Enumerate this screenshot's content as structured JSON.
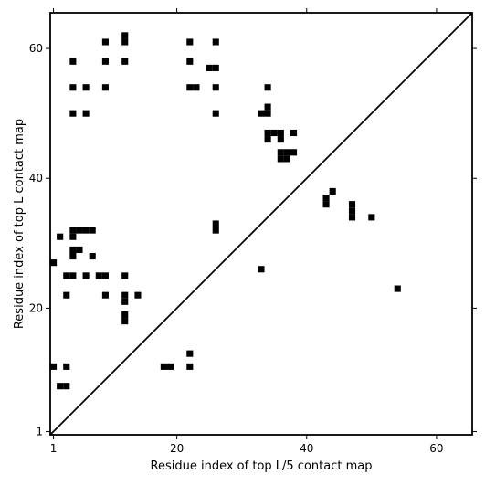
{
  "chart_data": {
    "type": "heatmap",
    "xlabel": "Residue index of top L/5 contact map",
    "ylabel": "Residue index of top L contact map",
    "xlim": [
      0.5,
      65.5
    ],
    "ylim": [
      0.5,
      65.5
    ],
    "x_ticks": [
      1,
      20,
      40,
      60
    ],
    "y_ticks": [
      1,
      20,
      40,
      60
    ],
    "diagonal": true,
    "colors": {
      "contact": "#000000",
      "background": "#ffffff",
      "frame": "#000000"
    },
    "contacts": [
      [
        12,
        62
      ],
      [
        12,
        61
      ],
      [
        9,
        61
      ],
      [
        22,
        61
      ],
      [
        26,
        61
      ],
      [
        4,
        58
      ],
      [
        9,
        58
      ],
      [
        12,
        58
      ],
      [
        22,
        58
      ],
      [
        25,
        57
      ],
      [
        26,
        57
      ],
      [
        4,
        54
      ],
      [
        6,
        54
      ],
      [
        9,
        54
      ],
      [
        22,
        54
      ],
      [
        23,
        54
      ],
      [
        26,
        54
      ],
      [
        34,
        54
      ],
      [
        34,
        51
      ],
      [
        4,
        50
      ],
      [
        6,
        50
      ],
      [
        26,
        50
      ],
      [
        33,
        50
      ],
      [
        34,
        50
      ],
      [
        34,
        47
      ],
      [
        35,
        47
      ],
      [
        36,
        47
      ],
      [
        38,
        47
      ],
      [
        34,
        46
      ],
      [
        36,
        46
      ],
      [
        36,
        44
      ],
      [
        37,
        44
      ],
      [
        38,
        44
      ],
      [
        36,
        43
      ],
      [
        37,
        43
      ],
      [
        44,
        38
      ],
      [
        43,
        37
      ],
      [
        43,
        36
      ],
      [
        47,
        36
      ],
      [
        47,
        35
      ],
      [
        47,
        34
      ],
      [
        50,
        34
      ],
      [
        26,
        33
      ],
      [
        26,
        32
      ],
      [
        4,
        32
      ],
      [
        5,
        32
      ],
      [
        6,
        32
      ],
      [
        7,
        32
      ],
      [
        2,
        31
      ],
      [
        4,
        31
      ],
      [
        4,
        29
      ],
      [
        5,
        29
      ],
      [
        4,
        28
      ],
      [
        7,
        28
      ],
      [
        1,
        27
      ],
      [
        33,
        26
      ],
      [
        3,
        25
      ],
      [
        4,
        25
      ],
      [
        6,
        25
      ],
      [
        8,
        25
      ],
      [
        9,
        25
      ],
      [
        12,
        25
      ],
      [
        54,
        23
      ],
      [
        3,
        22
      ],
      [
        9,
        22
      ],
      [
        12,
        22
      ],
      [
        14,
        22
      ],
      [
        12,
        21
      ],
      [
        12,
        19
      ],
      [
        12,
        18
      ],
      [
        22,
        13
      ],
      [
        1,
        11
      ],
      [
        3,
        11
      ],
      [
        18,
        11
      ],
      [
        19,
        11
      ],
      [
        22,
        11
      ],
      [
        2,
        8
      ],
      [
        3,
        8
      ]
    ]
  }
}
